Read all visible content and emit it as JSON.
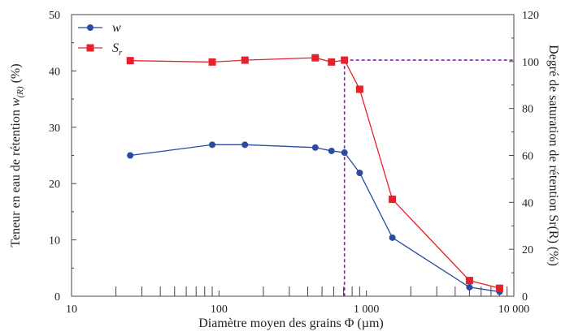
{
  "chart_data": {
    "type": "line",
    "xlabel": "Diamètre moyen des grains Φ (µm)",
    "ylabel_left": "Teneur en eau de rétention w(R) (%)",
    "ylabel_right": "Degré de saturation de rétention Sr(R) (%)",
    "x_scale": "log",
    "xlim": [
      10,
      10000
    ],
    "ylim_left": [
      0,
      50
    ],
    "ylim_right": [
      0,
      120
    ],
    "x_ticks": [
      "10",
      "100",
      "1 000",
      "10 000"
    ],
    "y_left_ticks": [
      "0",
      "10",
      "20",
      "30",
      "40",
      "50"
    ],
    "y_right_ticks": [
      "0",
      "20",
      "40",
      "60",
      "80",
      "100",
      "120"
    ],
    "legend_position": "top-left",
    "series": [
      {
        "name": "w",
        "axis": "left",
        "color": "#2b4ba0",
        "marker": "circle",
        "x": [
          25,
          90,
          150,
          450,
          580,
          710,
          900,
          1500,
          5000,
          8000
        ],
        "y": [
          25.0,
          26.9,
          26.9,
          26.4,
          25.8,
          25.5,
          21.9,
          10.4,
          1.6,
          0.8
        ]
      },
      {
        "name": "Sr",
        "axis": "right",
        "color": "#e8202a",
        "marker": "square",
        "x": [
          25,
          90,
          150,
          450,
          580,
          710,
          900,
          1500,
          5000,
          8000
        ],
        "y": [
          100.4,
          99.8,
          100.6,
          101.6,
          99.8,
          100.6,
          88.2,
          41.3,
          6.7,
          3.4
        ]
      }
    ],
    "annotations": {
      "threshold_x": 710,
      "threshold_y_right": 100.6,
      "threshold_color": "#8a1fb0"
    }
  }
}
